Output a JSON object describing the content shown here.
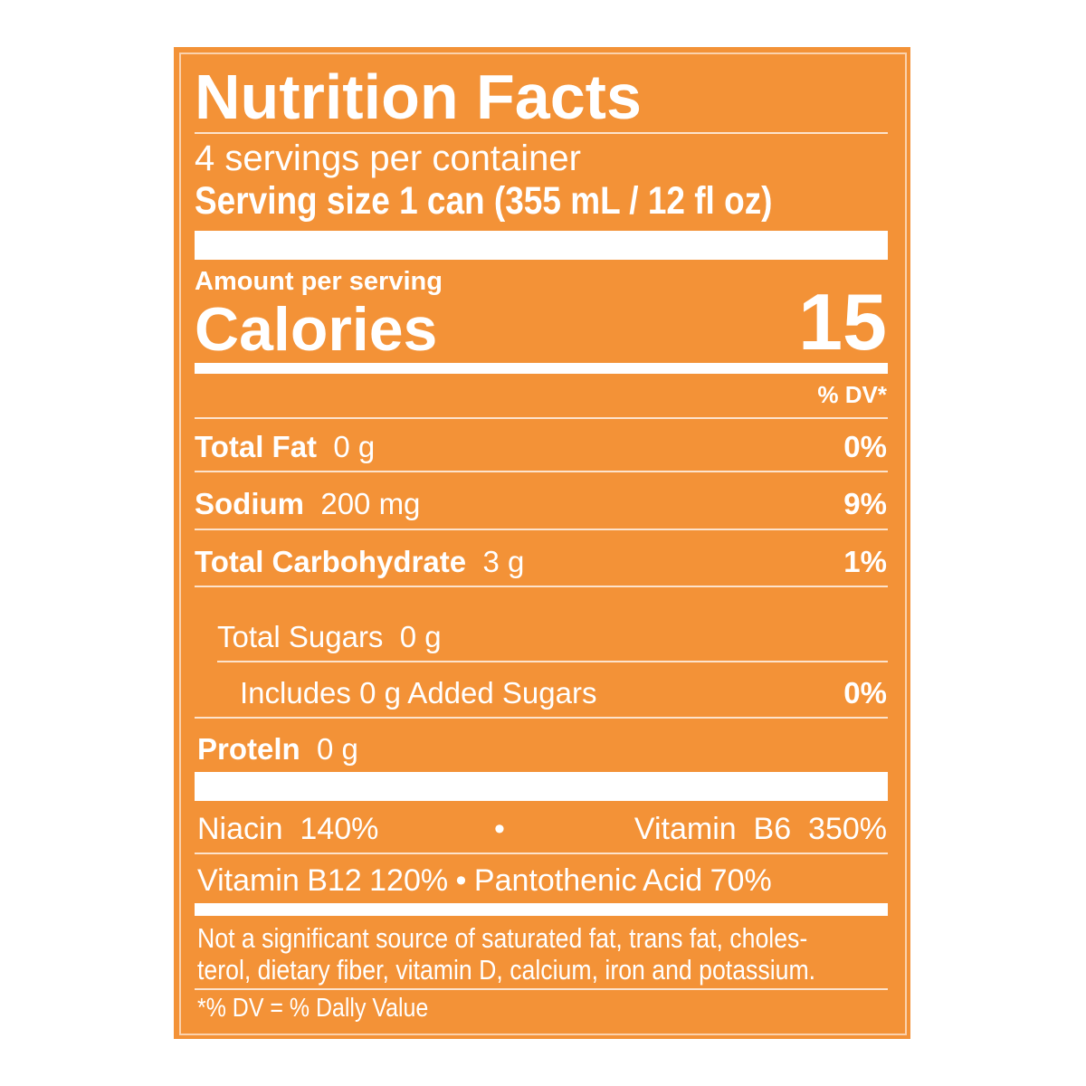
{
  "label": {
    "title": "Nutrition Facts",
    "servings_per_container": "4 servings per container",
    "serving_size": "Serving size 1 can (355 mL / 12 fl oz)",
    "amount_per_serving": "Amount per serving",
    "calories_label": "Calories",
    "calories_value": "15",
    "dv_header": "% DV*",
    "nutrients": [
      {
        "name": "Total Fat",
        "amount": "0 g",
        "dv": "0%"
      },
      {
        "name": "Sodium",
        "amount": "200 mg",
        "dv": "9%"
      },
      {
        "name": "Total Carbohydrate",
        "amount": "3 g",
        "dv": "1%"
      }
    ],
    "total_sugars": "Total Sugars  0 g",
    "added_sugars": "Includes 0 g Added Sugars",
    "added_sugars_dv": "0%",
    "protein_name": "Proteln",
    "protein_amount": "0 g",
    "vitamins_row1_left": "Niacin  140%",
    "vitamins_row1_sep": "•",
    "vitamins_row1_right": "Vitamin  B6  350%",
    "vitamins_row2": "Vitamin B12 120% • Pantothenic Acid 70%",
    "footnote_line1": "Not a significant source of saturated fat, trans fat, choles-",
    "footnote_line2": "terol, dietary fiber, vitamin D, calcium, iron and potassium.",
    "dv_footnote": "*% DV = % Dally Value"
  },
  "colors": {
    "background": "#F39237",
    "text": "#FFFFFF"
  }
}
